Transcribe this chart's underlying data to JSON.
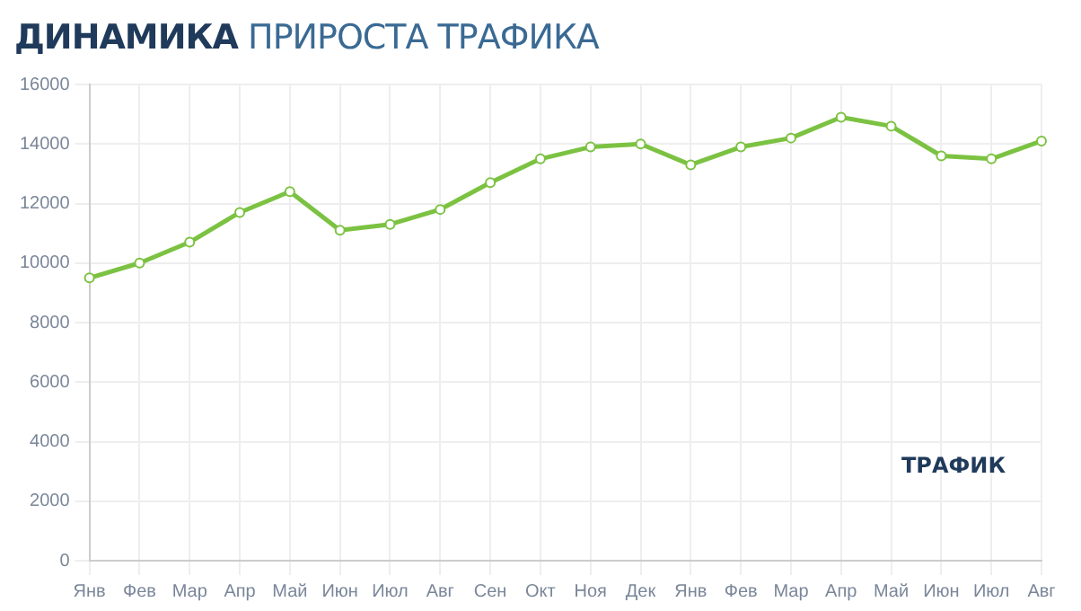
{
  "chart_data": {
    "type": "line",
    "title": "ДИНАМИКА ПРИРОСТА ТРАФИКА",
    "categories": [
      "Янв",
      "Фев",
      "Мар",
      "Апр",
      "Май",
      "Июн",
      "Июл",
      "Авг",
      "Сен",
      "Окт",
      "Ноя",
      "Дек",
      "Янв",
      "Фев",
      "Мар",
      "Апр",
      "Май",
      "Июн",
      "Июл",
      "Авг"
    ],
    "series": [
      {
        "color": "#7cc242",
        "values": [
          9500,
          10000,
          10700,
          11700,
          12400,
          11100,
          11300,
          11800,
          12700,
          13500,
          13900,
          14000,
          13300,
          13900,
          14200,
          14900,
          14600,
          13600,
          13500,
          14100
        ]
      }
    ],
    "ylim": [
      0,
      16000
    ],
    "yticks": [
      0,
      2000,
      4000,
      6000,
      8000,
      10000,
      12000,
      14000,
      16000
    ],
    "grid": true,
    "marker": "circle",
    "annotations": [
      "ТРАФИК"
    ]
  }
}
